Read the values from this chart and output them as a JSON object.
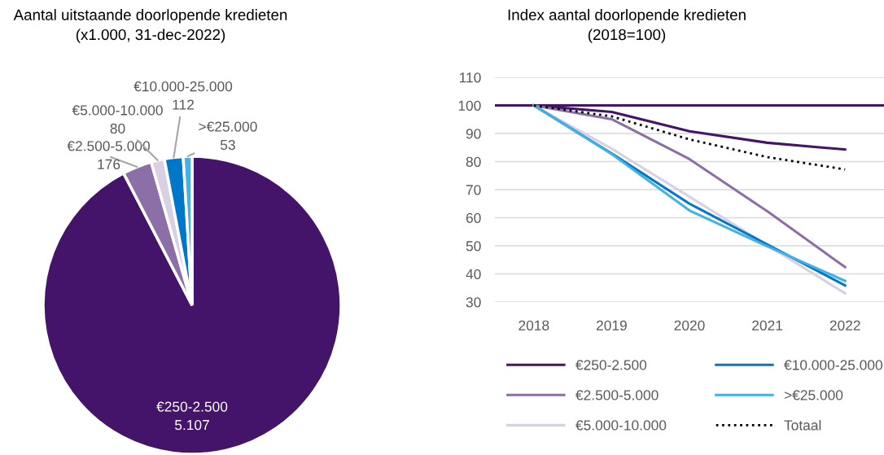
{
  "chart_data": [
    {
      "type": "pie",
      "title": "Aantal uitstaande doorlopende kredieten\n(x1.000, 31-dec-2022)",
      "categories": [
        "€250-2.500",
        "€2.500-5.000",
        "€5.000-10.000",
        "€10.000-25.000",
        ">€25.000"
      ],
      "values": [
        5107,
        176,
        80,
        112,
        53
      ],
      "value_labels": [
        "5.107",
        "176",
        "80",
        "112",
        "53"
      ],
      "colors": [
        "#44146a",
        "#8c6fa6",
        "#d9d0e3",
        "#0077c8",
        "#41b2e3"
      ]
    },
    {
      "type": "line",
      "title": "Index aantal doorlopende kredieten\n(2018=100)",
      "categories": [
        "2018",
        "2019",
        "2020",
        "2021",
        "2022"
      ],
      "ylim": [
        30,
        110
      ],
      "yticks": [
        30,
        40,
        50,
        60,
        70,
        80,
        90,
        100,
        110
      ],
      "grid": "y",
      "legend": "bottom",
      "marker": "none",
      "ref_lines": [
        {
          "axis": "y",
          "value": 100,
          "color": "#44146a",
          "line_style": "solid"
        }
      ],
      "series": [
        {
          "name": "€250-2.500",
          "color": "#44146a",
          "values": [
            100,
            97.7,
            90.8,
            86.7,
            84.3
          ]
        },
        {
          "name": "€2.500-5.000",
          "color": "#8c6fa6",
          "values": [
            100,
            95.1,
            80.9,
            62.3,
            42.4
          ]
        },
        {
          "name": "€5.000-10.000",
          "color": "#d9d0e3",
          "values": [
            100,
            84.6,
            67.5,
            50.2,
            33.1
          ]
        },
        {
          "name": "€10.000-25.000",
          "color": "#0077c8",
          "values": [
            100,
            82.9,
            65.0,
            50.5,
            35.9
          ]
        },
        {
          "name": ">€25.000",
          "color": "#41b2e3",
          "values": [
            100,
            82.7,
            62.6,
            49.8,
            37.5
          ]
        },
        {
          "name": "Totaal",
          "color": "#000000",
          "line_style": "dotted",
          "values": [
            100,
            96.1,
            87.9,
            81.6,
            77.2
          ]
        }
      ]
    }
  ]
}
